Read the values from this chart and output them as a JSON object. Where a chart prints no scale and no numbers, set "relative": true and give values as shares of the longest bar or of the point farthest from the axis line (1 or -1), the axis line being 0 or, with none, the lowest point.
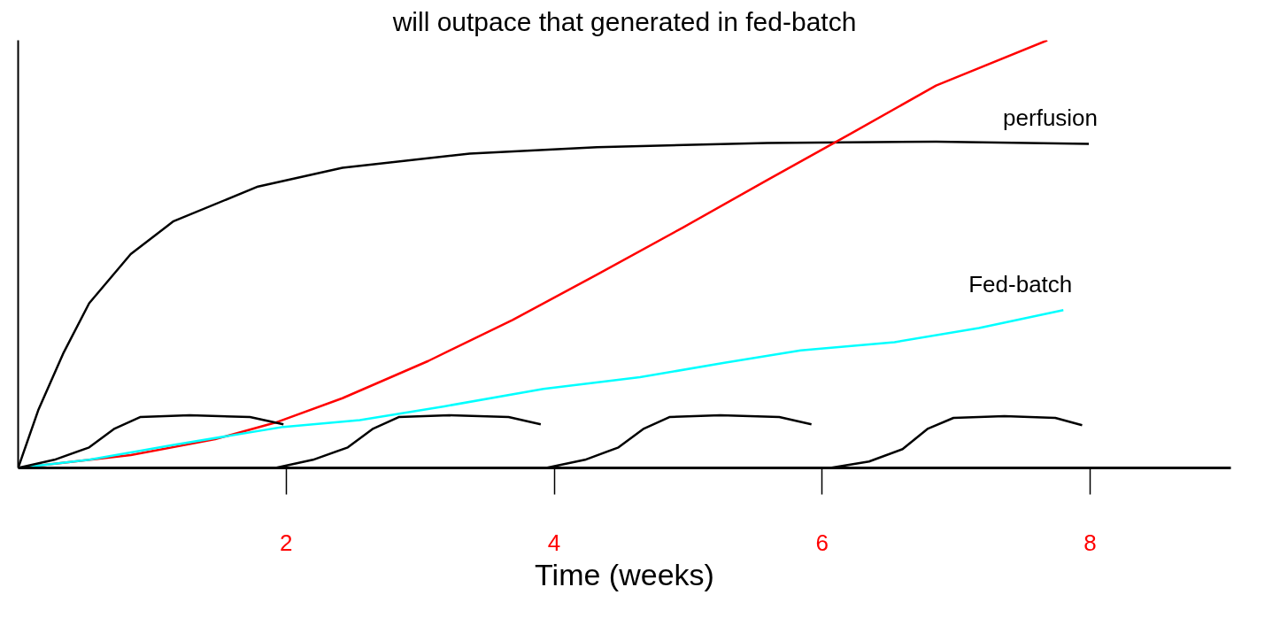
{
  "chart_data": {
    "type": "line",
    "relative": true,
    "title": "will outpace that generated in fed-batch",
    "xlabel": "Time (weeks)",
    "xlim": [
      0,
      9.05
    ],
    "xticks": [
      2,
      4,
      6,
      8
    ],
    "grid": false,
    "marker": "none",
    "line_style": "solid",
    "series": [
      {
        "name": "perfusion",
        "color": "#000000",
        "x": [
          0,
          0.15,
          0.34,
          0.53,
          0.84,
          1.16,
          1.79,
          2.42,
          3.37,
          4.32,
          5.59,
          6.85,
          7.99
        ],
        "values": [
          0,
          0.135,
          0.27,
          0.385,
          0.5,
          0.577,
          0.658,
          0.702,
          0.735,
          0.75,
          0.76,
          0.763,
          0.758
        ]
      },
      {
        "color": "#ff0000",
        "x": [
          0,
          0.84,
          1.47,
          1.92,
          2.42,
          3.06,
          3.69,
          4.32,
          4.96,
          5.59,
          6.22,
          6.85,
          7.68
        ],
        "values": [
          0,
          0.03,
          0.067,
          0.106,
          0.163,
          0.25,
          0.346,
          0.452,
          0.562,
          0.673,
          0.783,
          0.894,
          1.0
        ]
      },
      {
        "name": "Fed-batch",
        "color": "#00ffff",
        "x": [
          0,
          0.53,
          1.16,
          1.98,
          2.55,
          3.18,
          3.92,
          4.64,
          5.27,
          5.84,
          6.54,
          7.17,
          7.8
        ],
        "values": [
          0,
          0.019,
          0.054,
          0.096,
          0.112,
          0.144,
          0.185,
          0.212,
          0.246,
          0.275,
          0.294,
          0.327,
          0.369
        ]
      },
      {
        "color": "#000000",
        "x": [
          0,
          0.27,
          0.53,
          0.72,
          0.91,
          1.28,
          1.73,
          1.98
        ],
        "values": [
          0,
          0.019,
          0.048,
          0.092,
          0.119,
          0.123,
          0.119,
          0.102
        ]
      },
      {
        "color": "#000000",
        "x": [
          1.92,
          2.2,
          2.46,
          2.65,
          2.84,
          3.22,
          3.66,
          3.9
        ],
        "values": [
          0,
          0.019,
          0.048,
          0.092,
          0.119,
          0.123,
          0.119,
          0.102
        ]
      },
      {
        "color": "#000000",
        "x": [
          3.94,
          4.23,
          4.48,
          4.67,
          4.86,
          5.24,
          5.68,
          5.92
        ],
        "values": [
          0,
          0.019,
          0.048,
          0.092,
          0.119,
          0.123,
          0.119,
          0.102
        ]
      },
      {
        "color": "#000000",
        "x": [
          6.06,
          6.35,
          6.6,
          6.79,
          6.98,
          7.36,
          7.74,
          7.94
        ],
        "values": [
          0,
          0.015,
          0.044,
          0.092,
          0.117,
          0.121,
          0.117,
          0.1
        ]
      }
    ]
  }
}
